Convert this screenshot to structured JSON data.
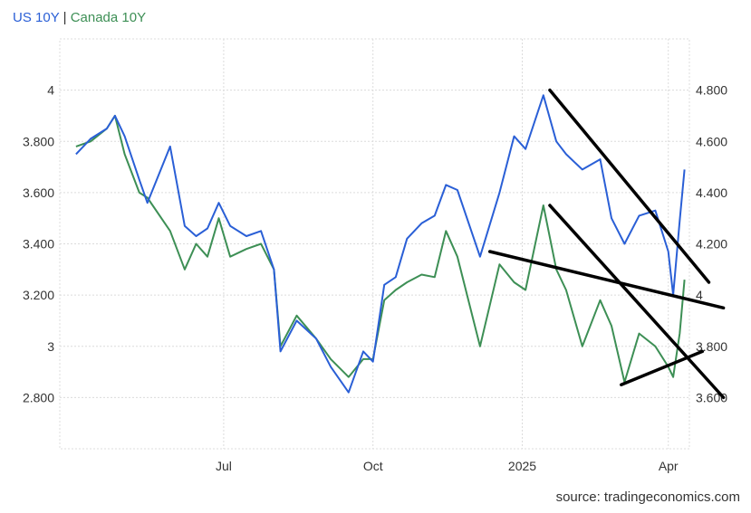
{
  "chart_data": {
    "type": "line",
    "title": "",
    "legend": {
      "position": "top-left",
      "separator": "|"
    },
    "x_ticks": [
      "Jul",
      "Oct",
      "2025",
      "Apr"
    ],
    "y_left": {
      "ticks": [
        "2.800",
        "3",
        "3.200",
        "3.400",
        "3.600",
        "3.800",
        "4"
      ],
      "range": [
        2.6,
        4.2
      ]
    },
    "y_right": {
      "ticks": [
        "3.600",
        "3.800",
        "4",
        "4.200",
        "4.400",
        "4.600",
        "4.800"
      ],
      "range": [
        3.4,
        5.0
      ]
    },
    "grid": true,
    "series": [
      {
        "name": "US 10Y",
        "color": "#2a5fd6",
        "axis": "right",
        "x": [
          "2024-04-01",
          "2024-04-10",
          "2024-04-20",
          "2024-04-25",
          "2024-05-01",
          "2024-05-10",
          "2024-05-15",
          "2024-05-29",
          "2024-06-07",
          "2024-06-14",
          "2024-06-21",
          "2024-06-28",
          "2024-07-05",
          "2024-07-15",
          "2024-07-24",
          "2024-08-01",
          "2024-08-05",
          "2024-08-15",
          "2024-08-27",
          "2024-09-05",
          "2024-09-16",
          "2024-09-25",
          "2024-10-01",
          "2024-10-08",
          "2024-10-15",
          "2024-10-22",
          "2024-10-31",
          "2024-11-08",
          "2024-11-15",
          "2024-11-22",
          "2024-12-06",
          "2024-12-18",
          "2024-12-27",
          "2025-01-03",
          "2025-01-14",
          "2025-01-22",
          "2025-01-28",
          "2025-02-07",
          "2025-02-18",
          "2025-02-25",
          "2025-03-05",
          "2025-03-14",
          "2025-03-24",
          "2025-04-01",
          "2025-04-04",
          "2025-04-08",
          "2025-04-11"
        ],
        "values": [
          4.55,
          4.61,
          4.65,
          4.7,
          4.62,
          4.45,
          4.36,
          4.58,
          4.27,
          4.23,
          4.26,
          4.36,
          4.27,
          4.23,
          4.25,
          4.1,
          3.78,
          3.9,
          3.83,
          3.72,
          3.62,
          3.78,
          3.74,
          4.04,
          4.07,
          4.22,
          4.28,
          4.31,
          4.43,
          4.41,
          4.15,
          4.4,
          4.62,
          4.57,
          4.78,
          4.6,
          4.55,
          4.49,
          4.53,
          4.3,
          4.2,
          4.31,
          4.33,
          4.17,
          4.0,
          4.29,
          4.49
        ]
      },
      {
        "name": "Canada 10Y",
        "color": "#3d8f55",
        "axis": "left",
        "x": [
          "2024-04-01",
          "2024-04-10",
          "2024-04-20",
          "2024-04-25",
          "2024-05-01",
          "2024-05-10",
          "2024-05-15",
          "2024-05-29",
          "2024-06-07",
          "2024-06-14",
          "2024-06-21",
          "2024-06-28",
          "2024-07-05",
          "2024-07-15",
          "2024-07-24",
          "2024-08-01",
          "2024-08-05",
          "2024-08-15",
          "2024-08-27",
          "2024-09-05",
          "2024-09-16",
          "2024-09-25",
          "2024-10-01",
          "2024-10-08",
          "2024-10-15",
          "2024-10-22",
          "2024-10-31",
          "2024-11-08",
          "2024-11-15",
          "2024-11-22",
          "2024-12-06",
          "2024-12-18",
          "2024-12-27",
          "2025-01-03",
          "2025-01-14",
          "2025-01-22",
          "2025-01-28",
          "2025-02-07",
          "2025-02-18",
          "2025-02-25",
          "2025-03-05",
          "2025-03-14",
          "2025-03-24",
          "2025-04-01",
          "2025-04-04",
          "2025-04-08",
          "2025-04-11"
        ],
        "values": [
          3.78,
          3.8,
          3.85,
          3.9,
          3.75,
          3.6,
          3.58,
          3.45,
          3.3,
          3.4,
          3.35,
          3.5,
          3.35,
          3.38,
          3.4,
          3.3,
          3.0,
          3.12,
          3.03,
          2.95,
          2.88,
          2.95,
          2.95,
          3.18,
          3.22,
          3.25,
          3.28,
          3.27,
          3.45,
          3.35,
          3.0,
          3.32,
          3.25,
          3.22,
          3.55,
          3.3,
          3.22,
          3.0,
          3.18,
          3.08,
          2.86,
          3.05,
          3.0,
          2.92,
          2.88,
          3.05,
          3.26
        ]
      }
    ],
    "trendlines": [
      {
        "x": [
          "2025-01-18",
          "2025-04-26"
        ],
        "right_values": [
          4.8,
          4.05
        ]
      },
      {
        "x": [
          "2025-01-18",
          "2025-05-05"
        ],
        "right_values": [
          4.35,
          3.6
        ]
      },
      {
        "x": [
          "2024-12-12",
          "2025-05-05"
        ],
        "right_values": [
          4.17,
          3.95
        ]
      },
      {
        "x": [
          "2025-03-03",
          "2025-04-22"
        ],
        "right_values": [
          3.65,
          3.78
        ]
      }
    ]
  },
  "source_label": "source: tradingeconomics.com"
}
